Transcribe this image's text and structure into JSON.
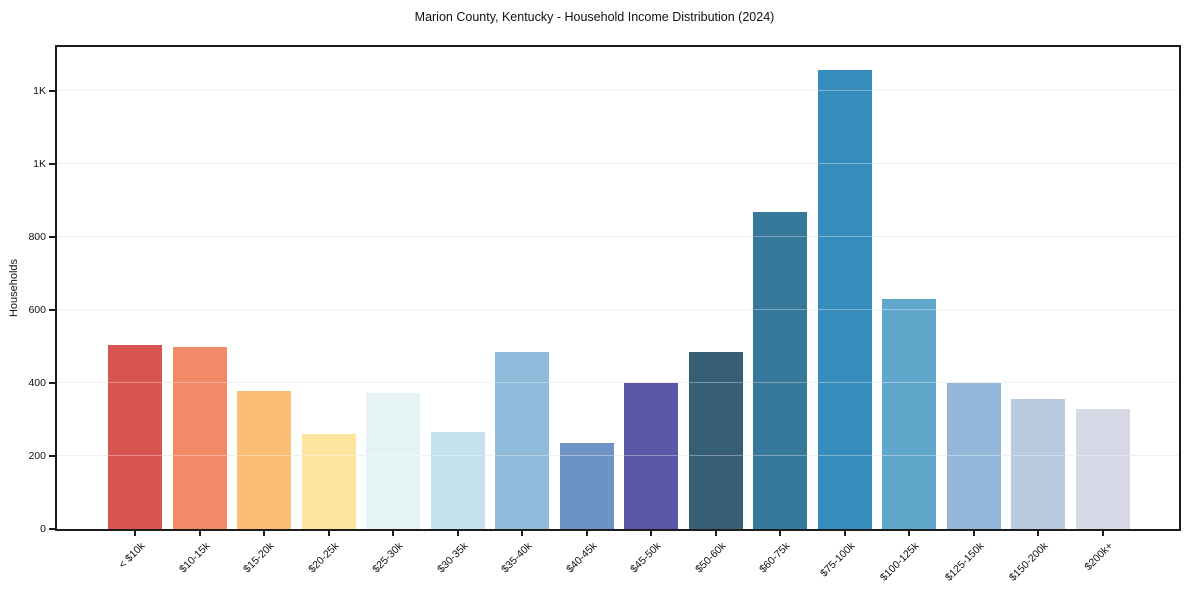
{
  "chart_data": {
    "type": "bar",
    "title": "Marion County, Kentucky - Household Income Distribution (2024)",
    "xlabel": "",
    "ylabel": "Households",
    "categories": [
      "< $10k",
      "$10-15k",
      "$15-20k",
      "$20-25k",
      "$25-30k",
      "$30-35k",
      "$35-40k",
      "$40-45k",
      "$45-50k",
      "$50-60k",
      "$60-75k",
      "$75-100k",
      "$100-125k",
      "$125-150k",
      "$150-200k",
      "$200k+"
    ],
    "values": [
      503,
      499,
      378,
      260,
      372,
      265,
      484,
      235,
      399,
      484,
      869,
      1257,
      631,
      399,
      355,
      328
    ],
    "bar_colors": [
      "#d65550",
      "#f28a68",
      "#fabd74",
      "#fde5a0",
      "#e6f3f4",
      "#c3e2ed",
      "#90bbda",
      "#6d92c4",
      "#5b58a8",
      "#365e75",
      "#35789a",
      "#368cbd",
      "#5fa7cb",
      "#92b7d9",
      "#b9cade",
      "#d6d9e5"
    ],
    "ylim": [
      0,
      1320
    ],
    "yticks": [
      {
        "value": 0,
        "label": "0"
      },
      {
        "value": 200,
        "label": "200"
      },
      {
        "value": 400,
        "label": "400"
      },
      {
        "value": 600,
        "label": "600"
      },
      {
        "value": 800,
        "label": "800"
      },
      {
        "value": 1000,
        "label": "1K"
      },
      {
        "value": 1200,
        "label": "1K"
      }
    ],
    "grid": "horizontal",
    "legend": "none",
    "axis_color": "#1c1c1c",
    "gridline_color": "#e9e9e9"
  }
}
